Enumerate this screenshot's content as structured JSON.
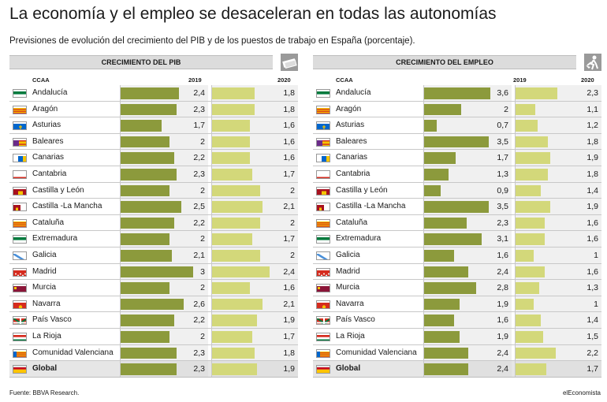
{
  "title": "La economía y el empleo se desaceleran en todas las autonomías",
  "subtitle": "Previsiones de evolución del crecimiento del PIB y de los puestos de trabajo en España (porcentaje).",
  "source": "Fuente: BBVA Research.",
  "brand": "elEconomista",
  "colors": {
    "bar2019": "#8c9a3c",
    "bar2020": "#d3d87a",
    "cell": "#f0f0f0",
    "header": "#dcdcdc"
  },
  "icons": {
    "pib": "money-bill-icon",
    "empleo": "worker-shovel-icon"
  },
  "chart_data": [
    {
      "type": "bar",
      "title": "CRECIMIENTO DEL PIB",
      "category_header": "CCAA",
      "categories": [
        "Andalucía",
        "Aragón",
        "Asturias",
        "Baleares",
        "Canarias",
        "Cantabria",
        "Castilla y León",
        "Castilla -La Mancha",
        "Cataluña",
        "Extremadura",
        "Galicia",
        "Madrid",
        "Murcia",
        "Navarra",
        "País Vasco",
        "La Rioja",
        "Comunidad Valenciana",
        "Global"
      ],
      "series": [
        {
          "name": "2019",
          "values": [
            2.4,
            2.3,
            1.7,
            2,
            2.2,
            2.3,
            2,
            2.5,
            2.2,
            2,
            2.1,
            3,
            2,
            2.6,
            2.2,
            2,
            2.3,
            2.3
          ],
          "labels": [
            "2,4",
            "2,3",
            "1,7",
            "2",
            "2,2",
            "2,3",
            "2",
            "2,5",
            "2,2",
            "2",
            "2,1",
            "3",
            "2",
            "2,6",
            "2,2",
            "2",
            "2,3",
            "2,3"
          ]
        },
        {
          "name": "2020",
          "values": [
            1.8,
            1.8,
            1.6,
            1.6,
            1.6,
            1.7,
            2,
            2.1,
            2,
            1.7,
            2,
            2.4,
            1.6,
            2.1,
            1.9,
            1.7,
            1.8,
            1.9
          ],
          "labels": [
            "1,8",
            "1,8",
            "1,6",
            "1,6",
            "1,6",
            "1,7",
            "2",
            "2,1",
            "2",
            "1,7",
            "2",
            "2,4",
            "1,6",
            "2,1",
            "1,9",
            "1,7",
            "1,8",
            "1,9"
          ]
        }
      ],
      "ylim": [
        0,
        3.2
      ]
    },
    {
      "type": "bar",
      "title": "CRECIMIENTO DEL EMPLEO",
      "category_header": "CCAA",
      "categories": [
        "Andalucía",
        "Aragón",
        "Asturias",
        "Baleares",
        "Canarias",
        "Cantabria",
        "Castilla y León",
        "Castilla -La Mancha",
        "Cataluña",
        "Extremadura",
        "Galicia",
        "Madrid",
        "Murcia",
        "Navarra",
        "País Vasco",
        "La Rioja",
        "Comunidad Valenciana",
        "Global"
      ],
      "series": [
        {
          "name": "2019",
          "values": [
            3.6,
            2,
            0.7,
            3.5,
            1.7,
            1.3,
            0.9,
            3.5,
            2.3,
            3.1,
            1.6,
            2.4,
            2.8,
            1.9,
            1.6,
            1.9,
            2.4,
            2.4
          ],
          "labels": [
            "3,6",
            "2",
            "0,7",
            "3,5",
            "1,7",
            "1,3",
            "0,9",
            "3,5",
            "2,3",
            "3,1",
            "1,6",
            "2,4",
            "2,8",
            "1,9",
            "1,6",
            "1,9",
            "2,4",
            "2,4"
          ]
        },
        {
          "name": "2020",
          "values": [
            2.3,
            1.1,
            1.2,
            1.8,
            1.9,
            1.8,
            1.4,
            1.9,
            1.6,
            1.6,
            1,
            1.6,
            1.3,
            1,
            1.4,
            1.5,
            2.2,
            1.7
          ],
          "labels": [
            "2,3",
            "1,1",
            "1,2",
            "1,8",
            "1,9",
            "1,8",
            "1,4",
            "1,9",
            "1,6",
            "1,6",
            "1",
            "1,6",
            "1,3",
            "1",
            "1,4",
            "1,5",
            "2,2",
            "1,7"
          ]
        }
      ],
      "ylim": [
        0,
        4.2
      ]
    }
  ]
}
